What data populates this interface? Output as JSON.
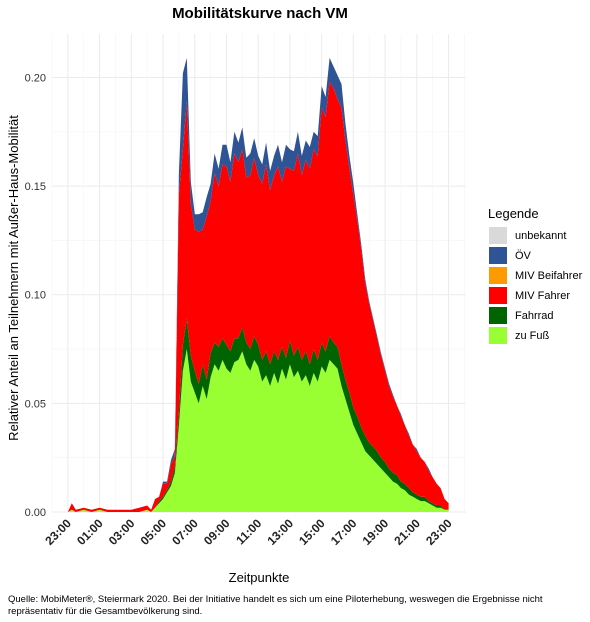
{
  "chart_data": {
    "type": "area",
    "stacked": true,
    "title": "Mobilitätskurve nach VM",
    "xlabel": "Zeitpunkte",
    "ylabel": "Relativer Anteil an Teilnehmern mit Außer-Haus-Mobilität",
    "xlim": [
      22.0,
      24.1
    ],
    "ylim": [
      0.0,
      0.22
    ],
    "x_ticks": [
      23,
      25,
      27,
      29,
      31,
      33,
      35,
      37,
      39,
      41,
      43,
      45,
      47
    ],
    "x_tick_labels": [
      "23:00",
      "01:00",
      "03:00",
      "05:00",
      "07:00",
      "09:00",
      "11:00",
      "13:00",
      "15:00",
      "17:00",
      "19:00",
      "21:00",
      "23:00"
    ],
    "y_ticks": [
      0.0,
      0.05,
      0.1,
      0.15,
      0.2
    ],
    "y_tick_labels": [
      "0.00",
      "0.05",
      "0.10",
      "0.15",
      "0.20"
    ],
    "grid": true,
    "legend": {
      "title": "Legende",
      "position": "right",
      "items": [
        {
          "name": "unbekannt",
          "color": "#d9d9d9"
        },
        {
          "name": "ÖV",
          "color": "#2e5496"
        },
        {
          "name": "MIV Beifahrer",
          "color": "#ff9900"
        },
        {
          "name": "MIV Fahrer",
          "color": "#ff0000"
        },
        {
          "name": "Fahrrad",
          "color": "#006400"
        },
        {
          "name": "zu Fuß",
          "color": "#99ff33"
        }
      ]
    },
    "x": [
      23.0,
      23.25,
      23.5,
      24.0,
      24.5,
      25.0,
      25.5,
      26.0,
      26.5,
      27.0,
      27.5,
      28.0,
      28.25,
      28.5,
      28.75,
      29.0,
      29.25,
      29.5,
      29.75,
      30.0,
      30.25,
      30.5,
      30.75,
      31.0,
      31.25,
      31.5,
      31.75,
      32.0,
      32.25,
      32.5,
      32.75,
      33.0,
      33.25,
      33.5,
      33.75,
      34.0,
      34.25,
      34.5,
      34.75,
      35.0,
      35.25,
      35.5,
      35.75,
      36.0,
      36.25,
      36.5,
      36.75,
      37.0,
      37.25,
      37.5,
      37.75,
      38.0,
      38.25,
      38.5,
      38.75,
      39.0,
      39.25,
      39.5,
      39.75,
      40.0,
      40.25,
      40.5,
      40.75,
      41.0,
      41.25,
      41.5,
      41.75,
      42.0,
      42.25,
      42.5,
      42.75,
      43.0,
      43.25,
      43.5,
      43.75,
      44.0,
      44.25,
      44.5,
      44.75,
      45.0,
      45.25,
      45.5,
      45.75,
      46.0,
      46.25,
      46.5,
      46.75,
      47.0
    ],
    "series": [
      {
        "name": "zu Fuß",
        "color": "#99ff33",
        "values": [
          0.0,
          0.001,
          0.0,
          0.001,
          0.0,
          0.001,
          0.0,
          0.0,
          0.0,
          0.0,
          0.0,
          0.001,
          0.0,
          0.002,
          0.004,
          0.006,
          0.009,
          0.012,
          0.018,
          0.04,
          0.065,
          0.075,
          0.06,
          0.055,
          0.05,
          0.058,
          0.052,
          0.062,
          0.068,
          0.065,
          0.07,
          0.066,
          0.064,
          0.069,
          0.07,
          0.074,
          0.068,
          0.065,
          0.07,
          0.067,
          0.06,
          0.063,
          0.058,
          0.064,
          0.059,
          0.066,
          0.061,
          0.068,
          0.062,
          0.065,
          0.06,
          0.063,
          0.058,
          0.064,
          0.06,
          0.067,
          0.064,
          0.07,
          0.068,
          0.066,
          0.058,
          0.052,
          0.046,
          0.04,
          0.036,
          0.032,
          0.028,
          0.026,
          0.024,
          0.022,
          0.02,
          0.018,
          0.016,
          0.014,
          0.013,
          0.011,
          0.01,
          0.008,
          0.007,
          0.006,
          0.005,
          0.005,
          0.004,
          0.003,
          0.002,
          0.002,
          0.001,
          0.001
        ]
      },
      {
        "name": "Fahrrad",
        "color": "#006400",
        "values": [
          0.0,
          0.0,
          0.0,
          0.0,
          0.0,
          0.0,
          0.0,
          0.0,
          0.0,
          0.0,
          0.0,
          0.0,
          0.0,
          0.0,
          0.001,
          0.001,
          0.001,
          0.002,
          0.003,
          0.006,
          0.012,
          0.014,
          0.012,
          0.01,
          0.009,
          0.01,
          0.009,
          0.011,
          0.01,
          0.011,
          0.01,
          0.011,
          0.01,
          0.011,
          0.01,
          0.011,
          0.01,
          0.01,
          0.011,
          0.01,
          0.01,
          0.011,
          0.01,
          0.01,
          0.011,
          0.01,
          0.01,
          0.011,
          0.01,
          0.011,
          0.01,
          0.011,
          0.01,
          0.011,
          0.01,
          0.011,
          0.01,
          0.011,
          0.01,
          0.01,
          0.01,
          0.009,
          0.009,
          0.008,
          0.008,
          0.007,
          0.007,
          0.006,
          0.006,
          0.006,
          0.005,
          0.005,
          0.004,
          0.004,
          0.004,
          0.003,
          0.003,
          0.003,
          0.002,
          0.002,
          0.002,
          0.002,
          0.001,
          0.001,
          0.001,
          0.001,
          0.0,
          0.0
        ]
      },
      {
        "name": "MIV Fahrer",
        "color": "#ff0000",
        "values": [
          0.0,
          0.003,
          0.001,
          0.001,
          0.001,
          0.001,
          0.001,
          0.001,
          0.001,
          0.001,
          0.002,
          0.002,
          0.001,
          0.004,
          0.002,
          0.006,
          0.003,
          0.008,
          0.005,
          0.1,
          0.09,
          0.1,
          0.07,
          0.065,
          0.07,
          0.062,
          0.075,
          0.07,
          0.078,
          0.074,
          0.08,
          0.082,
          0.078,
          0.085,
          0.081,
          0.082,
          0.076,
          0.08,
          0.082,
          0.078,
          0.081,
          0.086,
          0.08,
          0.081,
          0.089,
          0.076,
          0.088,
          0.079,
          0.085,
          0.089,
          0.085,
          0.088,
          0.09,
          0.092,
          0.094,
          0.108,
          0.108,
          0.117,
          0.117,
          0.114,
          0.118,
          0.11,
          0.103,
          0.098,
          0.09,
          0.082,
          0.07,
          0.064,
          0.058,
          0.052,
          0.047,
          0.042,
          0.038,
          0.035,
          0.032,
          0.03,
          0.027,
          0.024,
          0.022,
          0.02,
          0.018,
          0.016,
          0.014,
          0.012,
          0.01,
          0.008,
          0.005,
          0.003
        ]
      },
      {
        "name": "MIV Beifahrer",
        "color": "#ff9900",
        "values": [
          0.0,
          0.0,
          0.0,
          0.0,
          0.0,
          0.0,
          0.0,
          0.0,
          0.0,
          0.0,
          0.0,
          0.0,
          0.0,
          0.0,
          0.0,
          0.0,
          0.0,
          0.0,
          0.0,
          0.0,
          0.0,
          0.0,
          0.0,
          0.0,
          0.0,
          0.0,
          0.0,
          0.0,
          0.0,
          0.0,
          0.0,
          0.0,
          0.0,
          0.0,
          0.0,
          0.0,
          0.0,
          0.0,
          0.0,
          0.0,
          0.0,
          0.0,
          0.0,
          0.0,
          0.0,
          0.0,
          0.0,
          0.0,
          0.0,
          0.0,
          0.0,
          0.0,
          0.0,
          0.0,
          0.0,
          0.0,
          0.0,
          0.0,
          0.0,
          0.0,
          0.0,
          0.0,
          0.0,
          0.0,
          0.0,
          0.0,
          0.0,
          0.0,
          0.0,
          0.0,
          0.0,
          0.0,
          0.0,
          0.0,
          0.0,
          0.0,
          0.0,
          0.0,
          0.0,
          0.0,
          0.0,
          0.0,
          0.0,
          0.0,
          0.0,
          0.0,
          0.0,
          0.0
        ]
      },
      {
        "name": "ÖV",
        "color": "#2e5496",
        "values": [
          0.0,
          0.0,
          0.0,
          0.0,
          0.0,
          0.0,
          0.0,
          0.0,
          0.0,
          0.0,
          0.0,
          0.0,
          0.0,
          0.0,
          0.0,
          0.001,
          0.001,
          0.002,
          0.003,
          0.01,
          0.035,
          0.02,
          0.01,
          0.007,
          0.008,
          0.008,
          0.009,
          0.008,
          0.009,
          0.008,
          0.009,
          0.01,
          0.009,
          0.01,
          0.009,
          0.01,
          0.009,
          0.01,
          0.009,
          0.009,
          0.009,
          0.01,
          0.009,
          0.009,
          0.01,
          0.009,
          0.01,
          0.009,
          0.009,
          0.01,
          0.009,
          0.009,
          0.01,
          0.008,
          0.009,
          0.01,
          0.009,
          0.011,
          0.01,
          0.011,
          0.011,
          0.008,
          0.006,
          0.005,
          0.003,
          0.002,
          0.002,
          0.001,
          0.001,
          0.001,
          0.001,
          0.001,
          0.001,
          0.001,
          0.0,
          0.001,
          0.0,
          0.001,
          0.0,
          0.001,
          0.0,
          0.0,
          0.001,
          0.0,
          0.0,
          0.0,
          0.0,
          0.0
        ]
      },
      {
        "name": "unbekannt",
        "color": "#d9d9d9",
        "values": [
          0.0,
          0.0,
          0.0,
          0.0,
          0.0,
          0.0,
          0.0,
          0.0,
          0.0,
          0.0,
          0.0,
          0.0,
          0.0,
          0.0,
          0.0,
          0.0,
          0.0,
          0.0,
          0.0,
          0.0,
          0.0,
          0.0,
          0.0,
          0.0,
          0.0,
          0.0,
          0.0,
          0.0,
          0.0,
          0.0,
          0.0,
          0.0,
          0.0,
          0.0,
          0.0,
          0.0,
          0.0,
          0.0,
          0.0,
          0.0,
          0.0,
          0.0,
          0.0,
          0.0,
          0.0,
          0.0,
          0.0,
          0.0,
          0.0,
          0.0,
          0.0,
          0.0,
          0.0,
          0.0,
          0.0,
          0.0,
          0.0,
          0.0,
          0.0,
          0.0,
          0.0,
          0.0,
          0.0,
          0.0,
          0.0,
          0.0,
          0.0,
          0.0,
          0.0,
          0.0,
          0.0,
          0.0,
          0.0,
          0.0,
          0.0,
          0.0,
          0.0,
          0.0,
          0.0,
          0.0,
          0.0,
          0.0,
          0.0,
          0.0,
          0.0,
          0.0,
          0.0,
          0.0
        ]
      }
    ]
  },
  "caption": "Quelle: MobiMeter®, Steiermark 2020. Bei der Initiative handelt es sich um eine Piloterhebung, weswegen die Ergebnisse nicht repräsentativ für die Gesamtbevölkerung sind."
}
